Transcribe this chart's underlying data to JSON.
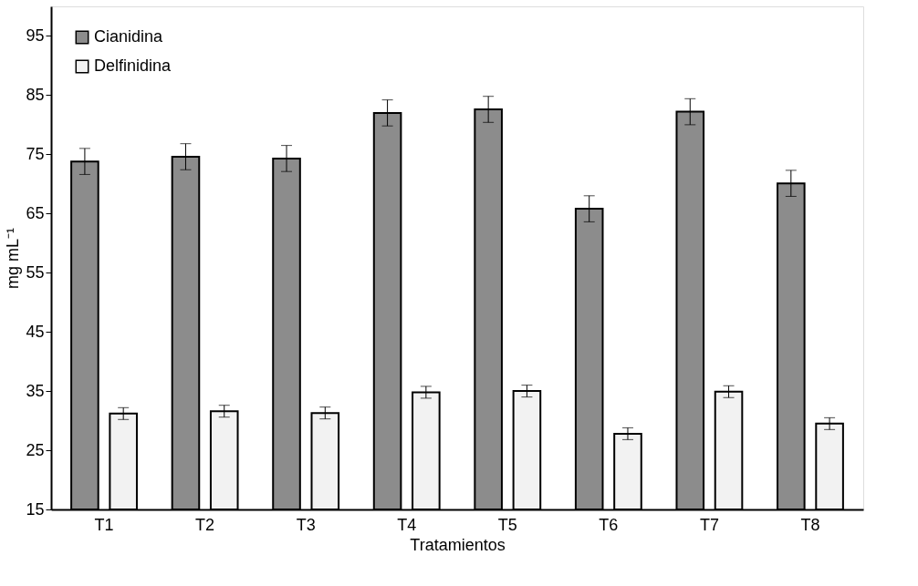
{
  "chart_data": {
    "type": "bar",
    "xlabel": "Tratamientos",
    "ylabel": "mg mL⁻¹",
    "categories": [
      "T1",
      "T2",
      "T3",
      "T4",
      "T5",
      "T6",
      "T7",
      "T8"
    ],
    "series": [
      {
        "name": "Cianidina",
        "color": "#8c8c8c",
        "values": [
          73.8,
          74.6,
          74.3,
          82.0,
          82.6,
          65.8,
          82.2,
          70.1
        ],
        "errors": [
          2.2,
          2.2,
          2.2,
          2.2,
          2.2,
          2.2,
          2.2,
          2.2
        ]
      },
      {
        "name": "Delfinidina",
        "color": "#f2f2f2",
        "values": [
          31.2,
          31.6,
          31.3,
          34.8,
          35.0,
          27.8,
          34.9,
          29.5
        ],
        "errors": [
          1.0,
          1.0,
          1.0,
          1.0,
          1.0,
          1.0,
          1.0,
          1.0
        ]
      }
    ],
    "ylim": [
      15,
      100
    ],
    "yticks": [
      15,
      25,
      35,
      45,
      55,
      65,
      75,
      85,
      95
    ],
    "grid": false,
    "legend": "top left"
  }
}
